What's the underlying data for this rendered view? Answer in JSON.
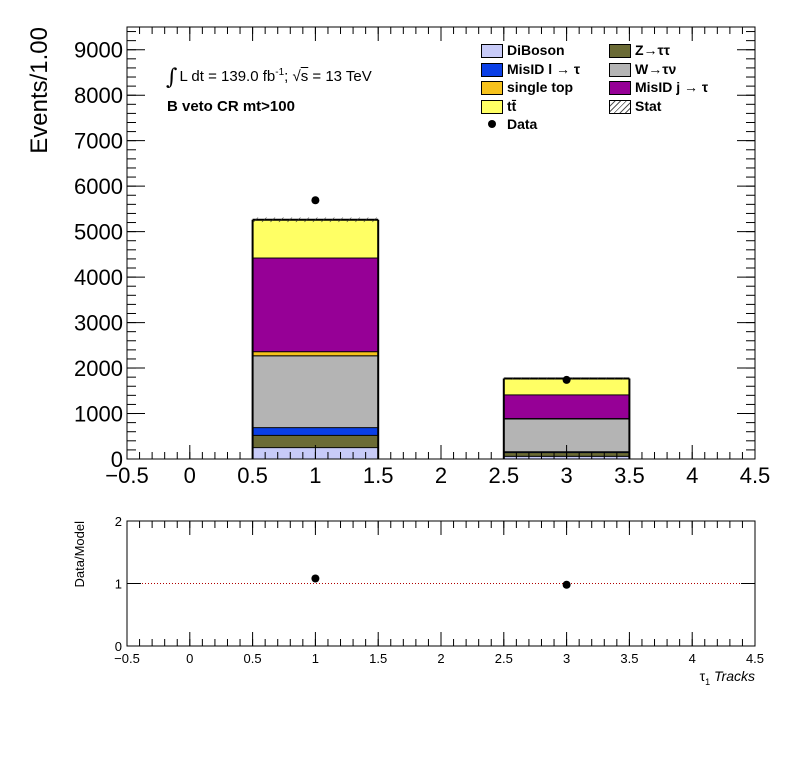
{
  "chart_data": [
    {
      "type": "bar",
      "stacked": true,
      "ylabel": "Events/1.00",
      "xlim": [
        -0.5,
        4.5
      ],
      "ylim": [
        0,
        9500
      ],
      "xticks": [
        "−0.5",
        "0",
        "0.5",
        "1",
        "1.5",
        "2",
        "2.5",
        "3",
        "3.5",
        "4",
        "4.5"
      ],
      "yticks": [
        "0",
        "1000",
        "2000",
        "3000",
        "4000",
        "5000",
        "6000",
        "7000",
        "8000",
        "9000"
      ],
      "bins": [
        [
          0.5,
          1.5
        ],
        [
          2.5,
          3.5
        ]
      ],
      "x": [
        1,
        3
      ],
      "series": [
        {
          "name": "DiBoson",
          "color": "#c8cbf8",
          "values": [
            260,
            70
          ]
        },
        {
          "name": "Z→ττ",
          "color": "#6b6b35",
          "values": [
            270,
            80
          ]
        },
        {
          "name": "MisID l → τ",
          "color": "#0a3fe6",
          "values": [
            170,
            20
          ]
        },
        {
          "name": "W→τν",
          "color": "#b4b4b4",
          "values": [
            1580,
            720
          ]
        },
        {
          "name": "single top",
          "color": "#f6c21c",
          "values": [
            90,
            10
          ]
        },
        {
          "name": "MisID j → τ",
          "color": "#960096",
          "values": [
            2060,
            520
          ]
        },
        {
          "name": "tt̄",
          "color": "#ffff64",
          "values": [
            830,
            350
          ]
        }
      ],
      "stat_band": {
        "name": "Stat",
        "totals": [
          5260,
          1770
        ],
        "half_width": [
          50,
          25
        ]
      },
      "data": {
        "name": "Data",
        "x": [
          1,
          3
        ],
        "y": [
          5690,
          1740
        ]
      },
      "legend_position": "top-right",
      "annotations": [
        "L dt = 139.0 fb",
        "-1",
        ";  ",
        "s",
        " = 13 TeV",
        "B veto CR mt>100"
      ]
    },
    {
      "type": "scatter",
      "ylabel": "Data/Model",
      "xlabel": "τ1 Tracks",
      "xlim": [
        -0.5,
        4.5
      ],
      "ylim": [
        0,
        2
      ],
      "xticks": [
        "−0.5",
        "0",
        "0.5",
        "1",
        "1.5",
        "2",
        "2.5",
        "3",
        "3.5",
        "4",
        "4.5"
      ],
      "yticks": [
        "0",
        "1",
        "2"
      ],
      "reference_line": 1,
      "x": [
        1,
        3
      ],
      "y": [
        1.08,
        0.98
      ]
    }
  ],
  "text": {
    "lumi_pre": "L dt = 139.0 fb",
    "lumi_exp": "-1",
    "lumi_sep": ";  ",
    "lumi_root": "√",
    "lumi_s": "s",
    "lumi_post": " = 13 TeV",
    "region": "B veto CR mt>100"
  }
}
